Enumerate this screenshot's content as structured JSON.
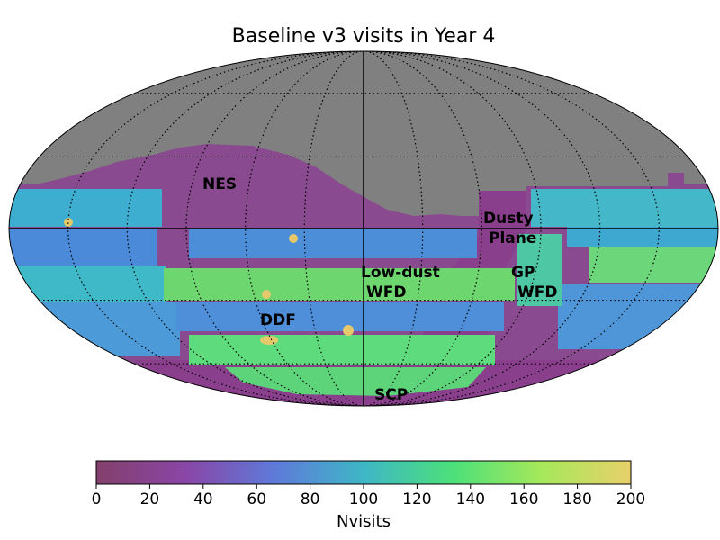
{
  "chart_data": {
    "type": "heatmap",
    "projection": "mollweide",
    "title": "Baseline v3 visits in Year 4",
    "colorbar": {
      "label": "Nvisits",
      "min": 0,
      "max": 200,
      "ticks": [
        0,
        20,
        40,
        60,
        80,
        100,
        120,
        140,
        160,
        180,
        200
      ],
      "colormap": [
        "#833f6b",
        "#8a46a6",
        "#5e7ad9",
        "#3fb6c6",
        "#4ce07a",
        "#a6e85b",
        "#e8d06a"
      ],
      "orientation": "horizontal"
    },
    "unobserved_color": "#808080",
    "graticule": {
      "lon_step_deg": 30,
      "lat_step_deg": 30,
      "style": "dotted"
    },
    "regions": [
      {
        "name": "NES",
        "label": "NES",
        "nvisits": 30
      },
      {
        "name": "Dusty Plane",
        "label": [
          "Dusty",
          "Plane"
        ],
        "nvisits": 30
      },
      {
        "name": "Low-dust WFD",
        "label": [
          "Low-dust",
          "WFD"
        ],
        "nvisits": 150
      },
      {
        "name": "GP WFD",
        "label": [
          "GP",
          "WFD"
        ],
        "nvisits": 130
      },
      {
        "name": "DDF",
        "label": "DDF",
        "nvisits": 200
      },
      {
        "name": "SCP",
        "label": "SCP",
        "nvisits": 40
      }
    ]
  }
}
